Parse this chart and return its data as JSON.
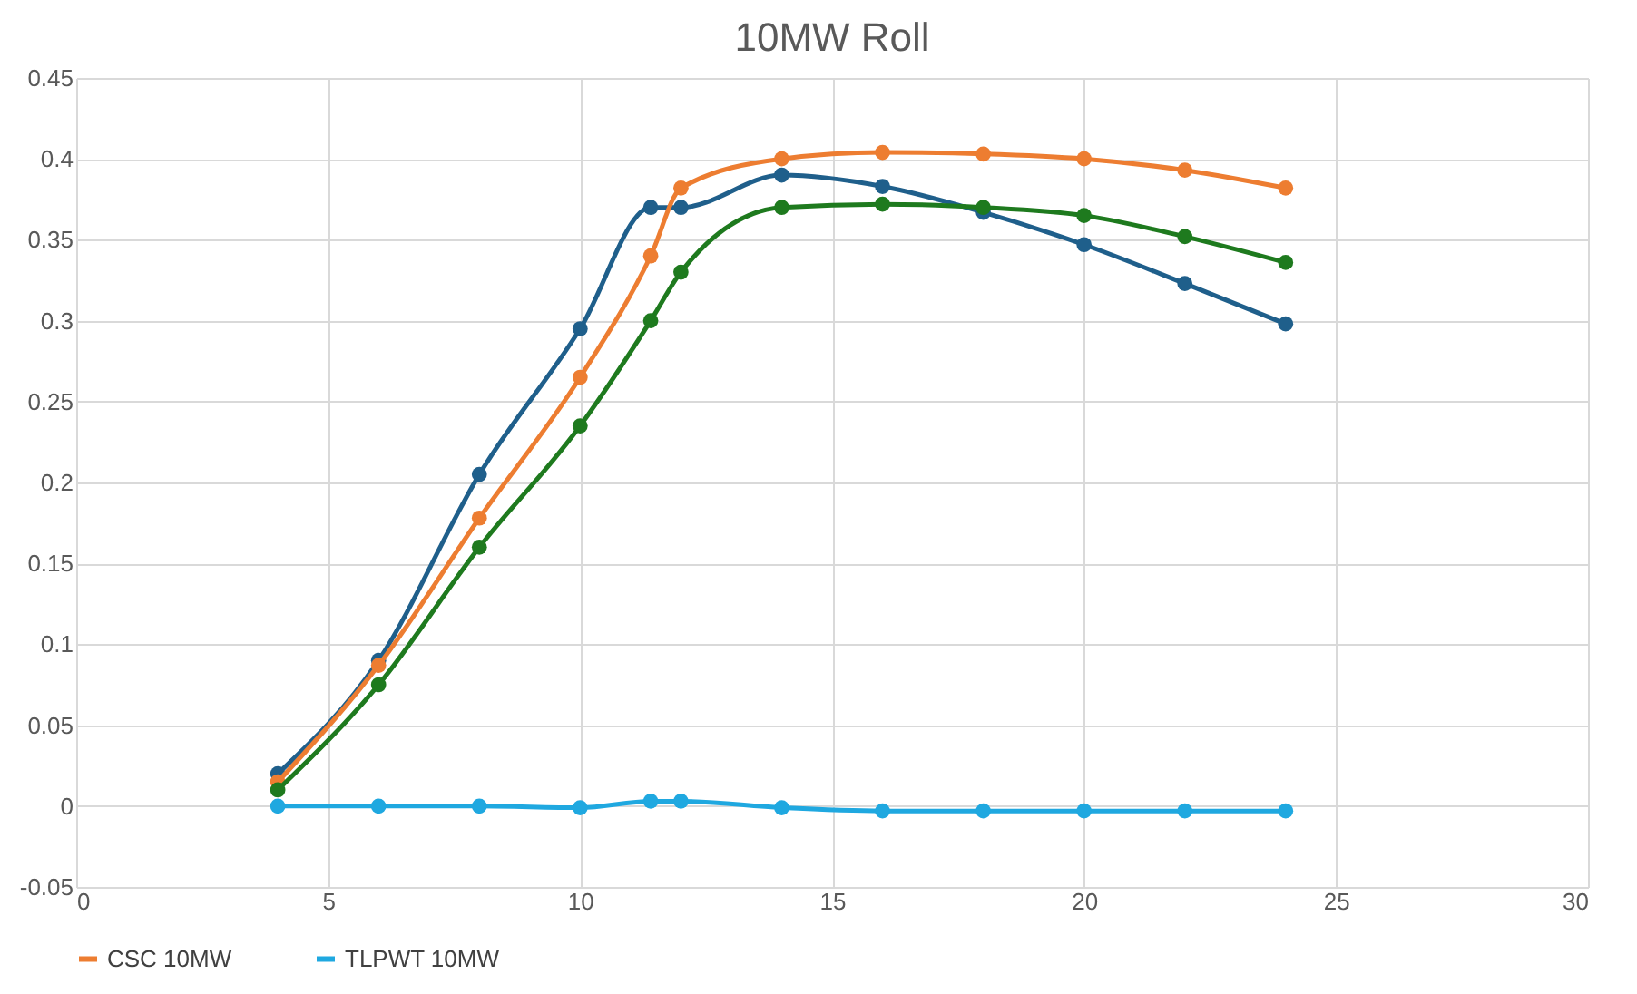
{
  "chart_data": {
    "type": "line",
    "title": "10MW Roll",
    "x": [
      4,
      6,
      8,
      10,
      11.4,
      12,
      14,
      16,
      18,
      20,
      22,
      24
    ],
    "series": [
      {
        "color": "#1f5f8b",
        "values": [
          0.02,
          0.09,
          0.205,
          0.295,
          0.37,
          0.37,
          0.39,
          0.383,
          0.367,
          0.347,
          0.323,
          0.298
        ]
      },
      {
        "name": "CSC 10MW",
        "color": "#ed7d31",
        "values": [
          0.015,
          0.087,
          0.178,
          0.265,
          0.34,
          0.382,
          0.4,
          0.404,
          0.403,
          0.4,
          0.393,
          0.382
        ]
      },
      {
        "color": "#1e7a1e",
        "values": [
          0.01,
          0.075,
          0.16,
          0.235,
          0.3,
          0.33,
          0.37,
          0.372,
          0.37,
          0.365,
          0.352,
          0.336
        ]
      },
      {
        "name": "TLPWT 10MW",
        "color": "#1fa8e0",
        "values": [
          0,
          0,
          0,
          -0.001,
          0.003,
          0.003,
          -0.001,
          -0.003,
          -0.003,
          -0.003,
          -0.003,
          -0.003
        ]
      }
    ],
    "xlim": [
      0,
      30
    ],
    "xticks": [
      0,
      5,
      10,
      15,
      20,
      25,
      30
    ],
    "ylim": [
      -0.05,
      0.45
    ],
    "yticks": [
      -0.05,
      0,
      0.05,
      0.1,
      0.15,
      0.2,
      0.25,
      0.3,
      0.35,
      0.4,
      0.45
    ],
    "grid": true,
    "legend": "bottom",
    "marker": "circle",
    "line_style": "solid"
  }
}
